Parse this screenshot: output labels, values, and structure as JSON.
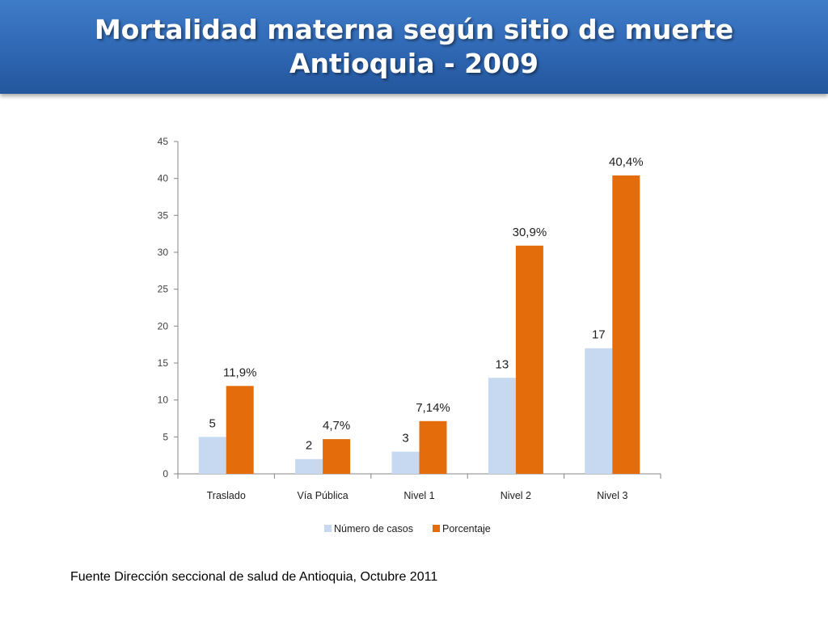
{
  "slide": {
    "title_line1": "Mortalidad materna según sitio de muerte",
    "title_line2": "Antioquia - 2009",
    "source": "Fuente Dirección seccional de salud de Antioquia, Octubre 2011"
  },
  "chart_data": {
    "type": "bar",
    "categories": [
      "Traslado",
      "Vía Pública",
      "Nivel 1",
      "Nivel 2",
      "Nivel 3"
    ],
    "series": [
      {
        "name": "Número de casos",
        "values": [
          5,
          2,
          3,
          13,
          17
        ],
        "labels": [
          "5",
          "2",
          "3",
          "13",
          "17"
        ],
        "color": "#c6d9f1"
      },
      {
        "name": "Porcentaje",
        "values": [
          11.9,
          4.7,
          7.14,
          30.9,
          40.4
        ],
        "labels": [
          "11,9%",
          "4,7%",
          "7,14%",
          "30,9%",
          "40,4%"
        ],
        "color": "#e46c0a"
      }
    ],
    "ylim": [
      0,
      45
    ],
    "yticks": [
      0,
      5,
      10,
      15,
      20,
      25,
      30,
      35,
      40,
      45
    ],
    "legend_position": "bottom",
    "grid": false
  }
}
